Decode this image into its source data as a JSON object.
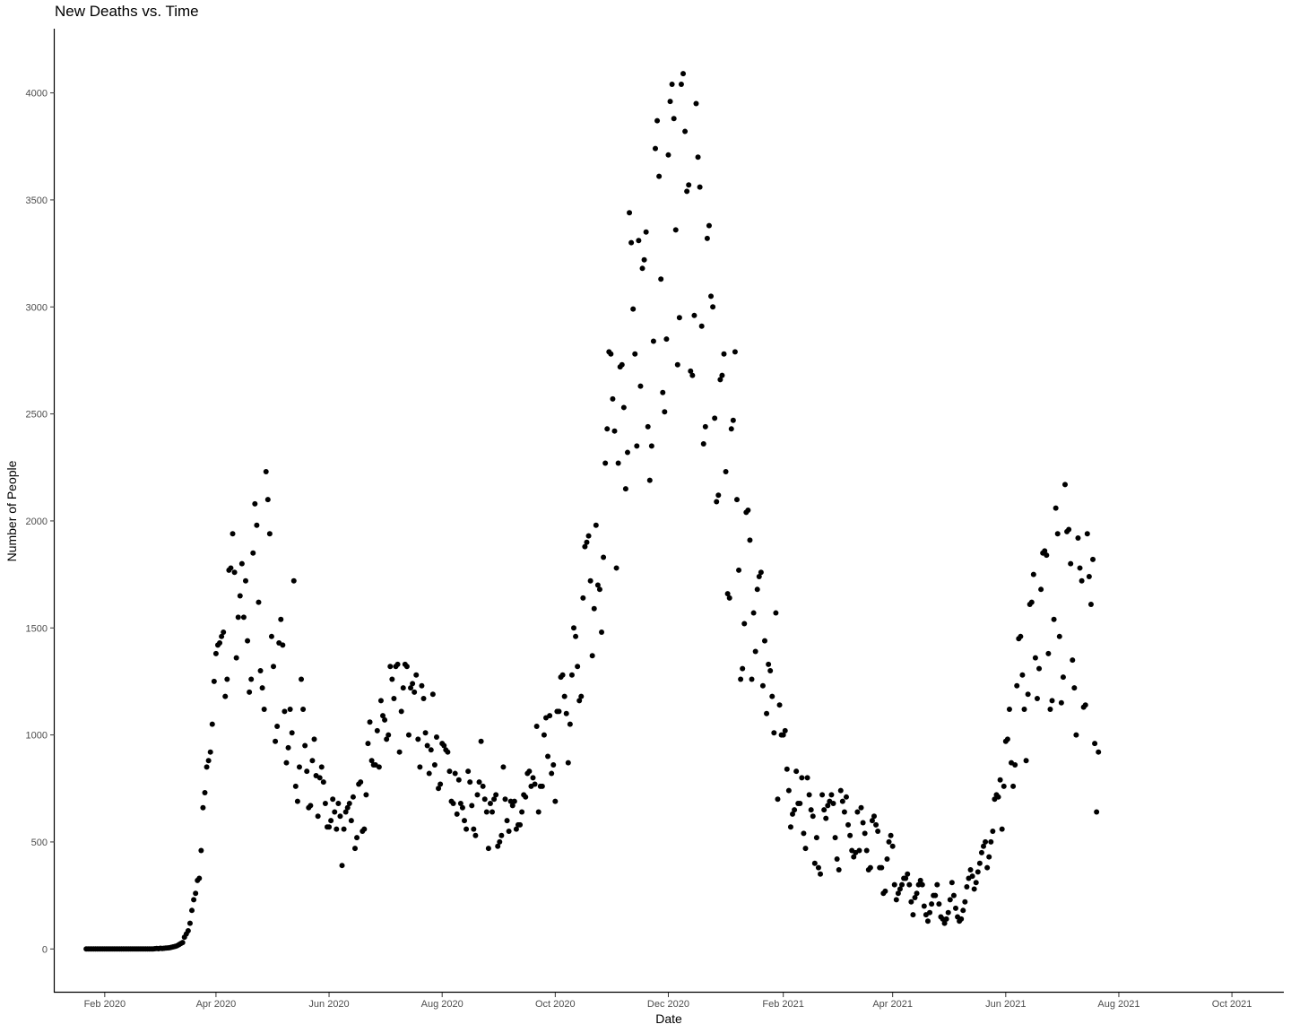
{
  "chart_data": {
    "type": "scatter",
    "title": "New Deaths vs. Time",
    "xlabel": "Date",
    "ylabel": "Number of People",
    "xlim": [
      "2020-01-05",
      "2021-10-29"
    ],
    "ylim": [
      -200,
      4300
    ],
    "x_ticks": [
      {
        "date": "2020-02-01",
        "label": "Feb 2020"
      },
      {
        "date": "2020-04-01",
        "label": "Apr 2020"
      },
      {
        "date": "2020-06-01",
        "label": "Jun 2020"
      },
      {
        "date": "2020-08-01",
        "label": "Aug 2020"
      },
      {
        "date": "2020-10-01",
        "label": "Oct 2020"
      },
      {
        "date": "2020-12-01",
        "label": "Dec 2020"
      },
      {
        "date": "2021-02-01",
        "label": "Feb 2021"
      },
      {
        "date": "2021-04-01",
        "label": "Apr 2021"
      },
      {
        "date": "2021-06-01",
        "label": "Jun 2021"
      },
      {
        "date": "2021-08-01",
        "label": "Aug 2021"
      },
      {
        "date": "2021-10-01",
        "label": "Oct 2021"
      }
    ],
    "y_ticks": [
      0,
      500,
      1000,
      1500,
      2000,
      2500,
      3000,
      3500,
      4000
    ],
    "grid": false,
    "legend": "none",
    "point_color": "#000000",
    "series": [
      {
        "start_date": "2020-01-22",
        "values": [
          0,
          0,
          0,
          0,
          0,
          0,
          0,
          0,
          0,
          0,
          0,
          0,
          0,
          0,
          0,
          0,
          0,
          0,
          0,
          0,
          0,
          0,
          0,
          0,
          0,
          0,
          0,
          0,
          0,
          0,
          0,
          0,
          0,
          0,
          0,
          0,
          0,
          1,
          2,
          1,
          3,
          2,
          3,
          4,
          5,
          6,
          8,
          10,
          12,
          15,
          20,
          25,
          30,
          55,
          70,
          85,
          120,
          180,
          230,
          260,
          320,
          330,
          460,
          660,
          730,
          850,
          880,
          920,
          1050,
          1250,
          1380,
          1420,
          1430,
          1460,
          1480,
          1180,
          1260,
          1770,
          1780,
          1940,
          1760,
          1360,
          1550,
          1650,
          1800,
          1550,
          1720,
          1440,
          1200,
          1260,
          1850,
          2080,
          1980,
          1620,
          1300,
          1220,
          1120,
          2230,
          2100,
          1940,
          1460,
          1320,
          970,
          1040,
          1430,
          1540,
          1420,
          1110,
          870,
          940,
          1120,
          1010,
          1720,
          760,
          690,
          850,
          1260,
          1120,
          950,
          830,
          660,
          670,
          880,
          980,
          810,
          620,
          800,
          850,
          780,
          680,
          570,
          570,
          600,
          700,
          640,
          560,
          680,
          620,
          390,
          560,
          640,
          660,
          680,
          600,
          710,
          470,
          520,
          770,
          780,
          550,
          560,
          720,
          960,
          1060,
          880,
          860,
          860,
          1020,
          850,
          1160,
          1090,
          1070,
          980,
          1000,
          1320,
          1260,
          1170,
          1320,
          1330,
          920,
          1110,
          1220,
          1330,
          1320,
          1000,
          1220,
          1240,
          1200,
          1280,
          980,
          850,
          1230,
          1170,
          1010,
          950,
          820,
          930,
          1190,
          860,
          990,
          750,
          770,
          960,
          950,
          930,
          920,
          830,
          690,
          680,
          820,
          630,
          790,
          680,
          660,
          600,
          560,
          830,
          780,
          670,
          560,
          530,
          720,
          780,
          970,
          760,
          700,
          640,
          470,
          680,
          640,
          700,
          720,
          480,
          500,
          530,
          850,
          700,
          600,
          550,
          690,
          670,
          690,
          560,
          580,
          580,
          640,
          720,
          710,
          820,
          830,
          760,
          800,
          770,
          1040,
          640,
          760,
          760,
          1000,
          1080,
          900,
          1090,
          820,
          860,
          690,
          1110,
          1110,
          1270,
          1280,
          1180,
          1100,
          870,
          1050,
          1280,
          1500,
          1460,
          1320,
          1160,
          1180,
          1640,
          1880,
          1900,
          1930,
          1720,
          1370,
          1590,
          1980,
          1700,
          1680,
          1480,
          1830,
          2270,
          2430,
          2790,
          2780,
          2570,
          2420,
          1780,
          2270,
          2720,
          2730,
          2530,
          2150,
          2320,
          3440,
          3300,
          2990,
          2780,
          2350,
          3310,
          2630,
          3180,
          3220,
          3350,
          2440,
          2190,
          2350,
          2840,
          3740,
          3870,
          3610,
          3130,
          2600,
          2510,
          2850,
          3710,
          3960,
          4040,
          3880,
          3360,
          2730,
          2950,
          4040,
          4090,
          3820,
          3540,
          3570,
          2700,
          2680,
          2960,
          3950,
          3700,
          3560,
          2910,
          2360,
          2440,
          3320,
          3380,
          3050,
          3000,
          2480,
          2090,
          2120,
          2660,
          2680,
          2780,
          2230,
          1660,
          1640,
          2430,
          2470,
          2790,
          2100,
          1770,
          1260,
          1310,
          1520,
          2040,
          2050,
          1910,
          1260,
          1570,
          1390,
          1680,
          1740,
          1760,
          1230,
          1440,
          1100,
          1330,
          1300,
          1180,
          1010,
          1570,
          700,
          1140,
          1000,
          1000,
          1020,
          840,
          740,
          570,
          630,
          650,
          830,
          680,
          680,
          800,
          540,
          470,
          800,
          720,
          650,
          620,
          400,
          520,
          380,
          350,
          720,
          650,
          610,
          670,
          690,
          720,
          680,
          520,
          420,
          370,
          740,
          690,
          640,
          710,
          580,
          530,
          460,
          430,
          450,
          640,
          460,
          660,
          590,
          540,
          460,
          370,
          380,
          600,
          620,
          580,
          550,
          380,
          380,
          260,
          270,
          420,
          500,
          530,
          480,
          300,
          230,
          260,
          280,
          300,
          330,
          330,
          350,
          300,
          220,
          160,
          240,
          260,
          300,
          320,
          300,
          200,
          160,
          130,
          170,
          210,
          250,
          250,
          300,
          210,
          150,
          140,
          120,
          140,
          170,
          230,
          310,
          250,
          190,
          150,
          130,
          140,
          180,
          220,
          290,
          330,
          370,
          340,
          280,
          310,
          360,
          400,
          450,
          480,
          500,
          380,
          430,
          500,
          550,
          700,
          720,
          710,
          790,
          560,
          760,
          970,
          980,
          1120,
          870,
          760,
          860,
          1230,
          1450,
          1460,
          1280,
          1120,
          880,
          1190,
          1610,
          1620,
          1750,
          1360,
          1170,
          1310,
          1680,
          1850,
          1860,
          1840,
          1380,
          1120,
          1160,
          1540,
          2060,
          1940,
          1460,
          1150,
          1270,
          2170,
          1950,
          1960,
          1800,
          1350,
          1220,
          1000,
          1920,
          1780,
          1720,
          1130,
          1140,
          1940,
          1740,
          1610,
          1820,
          960,
          640,
          920
        ]
      }
    ]
  }
}
